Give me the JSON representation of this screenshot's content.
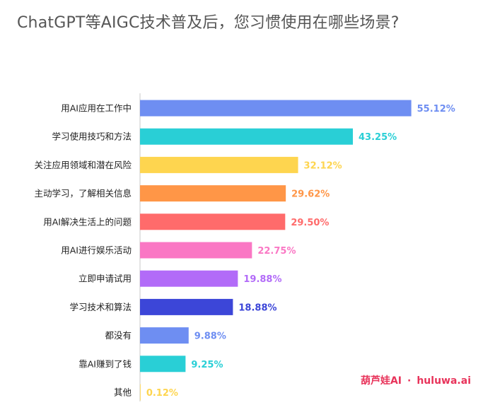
{
  "title": "ChatGPT等AIGC技术普及后，您习惯使用在哪些场景?",
  "watermark": {
    "brand": "葫芦娃AI",
    "separator": "·",
    "site": "huluwa.ai"
  },
  "chart_data": {
    "type": "bar",
    "orientation": "horizontal",
    "title": "ChatGPT等AIGC技术普及后，您习惯使用在哪些场景?",
    "xlabel": "",
    "ylabel": "",
    "grid": false,
    "legend": "none",
    "xlim": [
      0,
      60
    ],
    "categories": [
      "用AI应用在工作中",
      "学习使用技巧和方法",
      "关注应用领域和潜在风险",
      "主动学习，了解相关信息",
      "用AI解决生活上的问题",
      "用AI进行娱乐活动",
      "立即申请试用",
      "学习技术和算法",
      "都没有",
      "靠AI赚到了钱",
      "其他"
    ],
    "values": [
      55.12,
      43.25,
      32.12,
      29.62,
      29.5,
      22.75,
      19.88,
      18.88,
      9.88,
      9.25,
      0.12
    ],
    "value_labels": [
      "55.12%",
      "43.25%",
      "32.12%",
      "29.62%",
      "29.50%",
      "22.75%",
      "19.88%",
      "18.88%",
      "9.88%",
      "9.25%",
      "0.12%"
    ],
    "colors": [
      "#6e8ef2",
      "#29cfd6",
      "#fed54f",
      "#ff9647",
      "#ff6b6b",
      "#fa77c4",
      "#b26bf8",
      "#3c46d8",
      "#6e8ef2",
      "#29cfd6",
      "#fed54f"
    ]
  }
}
